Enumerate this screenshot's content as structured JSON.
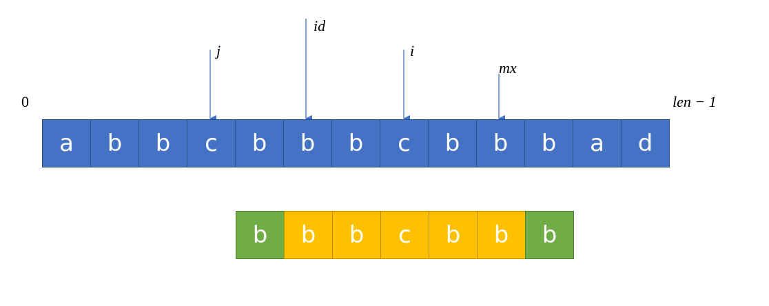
{
  "labels": {
    "start_index": "0",
    "end_index": "len − 1",
    "pointer_j": "j",
    "pointer_id": "id",
    "pointer_i": "i",
    "pointer_mx": "mx"
  },
  "string_cells": [
    "a",
    "b",
    "b",
    "c",
    "b",
    "b",
    "b",
    "c",
    "b",
    "b",
    "b",
    "a",
    "d"
  ],
  "palindrome_cells": [
    {
      "char": "b",
      "color": "green"
    },
    {
      "char": "b",
      "color": "yellow"
    },
    {
      "char": "b",
      "color": "yellow"
    },
    {
      "char": "c",
      "color": "yellow"
    },
    {
      "char": "b",
      "color": "yellow"
    },
    {
      "char": "b",
      "color": "yellow"
    },
    {
      "char": "b",
      "color": "green"
    }
  ],
  "colors": {
    "string_fill": "#4472c4",
    "arrow": "#4472c4",
    "palindrome_edge": "#70ad47",
    "palindrome_inner": "#ffc000"
  }
}
